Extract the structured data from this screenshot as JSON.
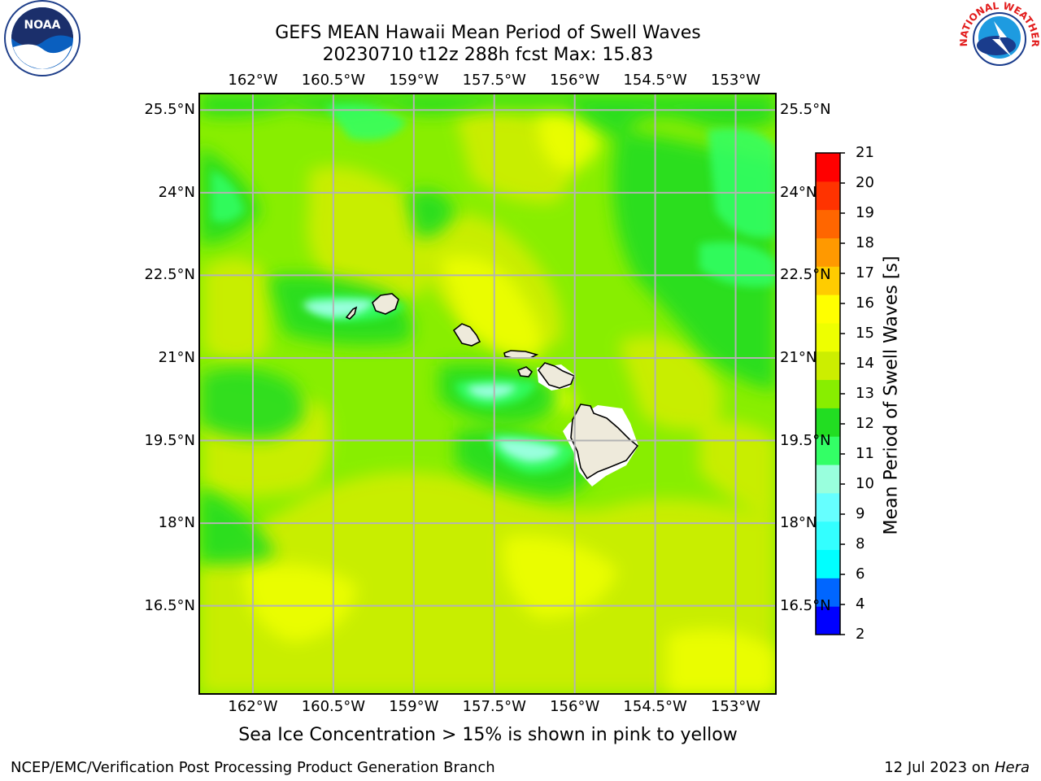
{
  "title": {
    "line1": "GEFS MEAN Hawaii Mean Period of Swell Waves",
    "line2": "20230710 t12z 288h fcst   Max: 15.83"
  },
  "map": {
    "lon_labels": [
      "162°W",
      "160.5°W",
      "159°W",
      "157.5°W",
      "156°W",
      "154.5°W",
      "153°W"
    ],
    "lon_values": [
      -162,
      -160.5,
      -159,
      -157.5,
      -156,
      -154.5,
      -153
    ],
    "lat_labels": [
      "25.5°N",
      "24°N",
      "22.5°N",
      "21°N",
      "19.5°N",
      "18°N",
      "16.5°N"
    ],
    "lat_values": [
      25.5,
      24,
      22.5,
      21,
      19.5,
      18,
      16.5
    ],
    "lon_range": [
      -163,
      -152.25
    ],
    "lat_range": [
      14.9,
      25.8
    ],
    "gridlines": true,
    "background_color": "#88ee00",
    "grid_color": "#b3b3b3",
    "land_color": "#eeeadb"
  },
  "colorbar": {
    "label": "Mean Period of Swell Waves [s]",
    "ticks": [
      2,
      4,
      6,
      8,
      9,
      10,
      11,
      12,
      13,
      14,
      15,
      16,
      17,
      18,
      19,
      20,
      21
    ],
    "colors": [
      "#0000ff",
      "#0066ff",
      "#00ffff",
      "#33ffff",
      "#66ffff",
      "#99ffdd",
      "#33ff66",
      "#22dd22",
      "#88ee00",
      "#ccee00",
      "#eeff00",
      "#ffff00",
      "#ffcc00",
      "#ff9900",
      "#ff6600",
      "#ff3300",
      "#ff0000"
    ]
  },
  "note": "Sea Ice Concentration > 15% is shown in pink to yellow",
  "footer": {
    "left": "NCEP/EMC/Verification Post Processing Product Generation Branch",
    "date": "12 Jul 2023 on ",
    "machine": "Hera"
  },
  "logos": {
    "left": {
      "name": "noaa-logo",
      "text": "NOAA"
    },
    "right": {
      "name": "nws-logo",
      "text": "NATIONAL WEATHER SERVICE"
    }
  }
}
